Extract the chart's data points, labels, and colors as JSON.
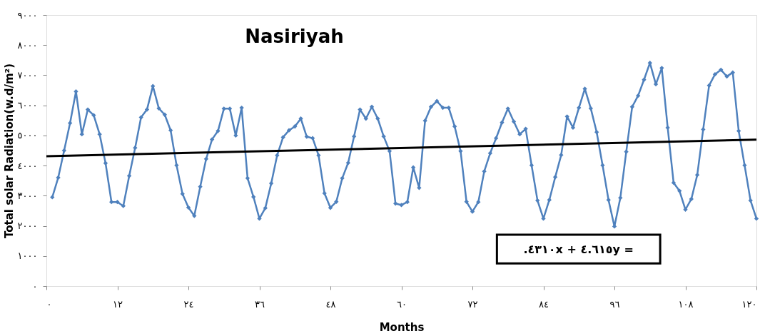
{
  "chart_data": {
    "type": "line",
    "title": "Nasiriyah",
    "xlabel": "Months",
    "ylabel": "Total solar Radiation(w.d/m²)",
    "x": [
      1,
      2,
      3,
      4,
      5,
      6,
      7,
      8,
      9,
      10,
      11,
      12,
      13,
      14,
      15,
      16,
      17,
      18,
      19,
      20,
      21,
      22,
      23,
      24,
      25,
      26,
      27,
      28,
      29,
      30,
      31,
      32,
      33,
      34,
      35,
      36,
      37,
      38,
      39,
      40,
      41,
      42,
      43,
      44,
      45,
      46,
      47,
      48,
      49,
      50,
      51,
      52,
      53,
      54,
      55,
      56,
      57,
      58,
      59,
      60,
      61,
      62,
      63,
      64,
      65,
      66,
      67,
      68,
      69,
      70,
      71,
      72,
      73,
      74,
      75,
      76,
      77,
      78,
      79,
      80,
      81,
      82,
      83,
      84,
      85,
      86,
      87,
      88,
      89,
      90,
      91,
      92,
      93,
      94,
      95,
      96,
      97,
      98,
      99,
      100,
      101,
      102,
      103,
      104,
      105,
      106,
      107,
      108,
      109,
      110,
      111,
      112,
      113,
      114,
      115,
      116,
      117,
      118,
      119,
      120
    ],
    "series": [
      {
        "color": "#4f81bd",
        "marker": "diamond",
        "values": [
          2950,
          3600,
          4500,
          5410,
          6460,
          5040,
          5860,
          5670,
          5040,
          4080,
          2790,
          2790,
          2660,
          3660,
          4590,
          5600,
          5860,
          6640,
          5900,
          5690,
          5170,
          4010,
          3060,
          2610,
          2330,
          3300,
          4220,
          4870,
          5150,
          5890,
          5890,
          5000,
          5920,
          3580,
          2960,
          2240,
          2590,
          3410,
          4340,
          4940,
          5170,
          5300,
          5560,
          4960,
          4910,
          4340,
          3080,
          2600,
          2800,
          3580,
          4090,
          4970,
          5860,
          5560,
          5950,
          5560,
          4970,
          4480,
          2740,
          2690,
          2790,
          3940,
          3260,
          5490,
          5950,
          6140,
          5920,
          5920,
          5300,
          4480,
          2800,
          2470,
          2790,
          3810,
          4410,
          4910,
          5430,
          5890,
          5460,
          5040,
          5220,
          4010,
          2840,
          2240,
          2860,
          3620,
          4350,
          5630,
          5260,
          5920,
          6550,
          5900,
          5110,
          4010,
          2860,
          1980,
          2930,
          4460,
          5950,
          6320,
          6850,
          7410,
          6700,
          7240,
          5260,
          3430,
          3160,
          2540,
          2890,
          3690,
          5200,
          6660,
          7030,
          7180,
          6960,
          7090,
          5150,
          4010,
          2840,
          2240
        ]
      },
      {
        "type": "line",
        "color": "#000000",
        "marker": "none",
        "x": [
          0,
          120
        ],
        "values": [
          4310,
          4860
        ]
      }
    ],
    "xlim": [
      0,
      120
    ],
    "xticks": [
      {
        "value": 0,
        "label": "٠"
      },
      {
        "value": 12,
        "label": "١٢"
      },
      {
        "value": 24,
        "label": "٢٤"
      },
      {
        "value": 36,
        "label": "٣٦"
      },
      {
        "value": 48,
        "label": "٤٨"
      },
      {
        "value": 60,
        "label": "٦٠"
      },
      {
        "value": 72,
        "label": "٧٢"
      },
      {
        "value": 84,
        "label": "٨٤"
      },
      {
        "value": 96,
        "label": "٩٦"
      },
      {
        "value": 108,
        "label": "١٠٨"
      },
      {
        "value": 120,
        "label": "١٢٠"
      }
    ],
    "ylim": [
      0,
      9000
    ],
    "yticks": [
      {
        "value": 0,
        "label": "٠"
      },
      {
        "value": 1000,
        "label": "١٠٠٠"
      },
      {
        "value": 2000,
        "label": "٢٠٠٠"
      },
      {
        "value": 3000,
        "label": "٣٠٠٠"
      },
      {
        "value": 4000,
        "label": "٤٠٠٠"
      },
      {
        "value": 5000,
        "label": "٥٠٠٠"
      },
      {
        "value": 6000,
        "label": "٦٠٠٠"
      },
      {
        "value": 7000,
        "label": "٧٠٠٠"
      },
      {
        "value": 8000,
        "label": "٨٠٠٠"
      },
      {
        "value": 9000,
        "label": "٩٠٠٠"
      }
    ],
    "annotations": [
      ".٤٣١٠x + ٤.٦١٥y ="
    ],
    "grid": false
  }
}
